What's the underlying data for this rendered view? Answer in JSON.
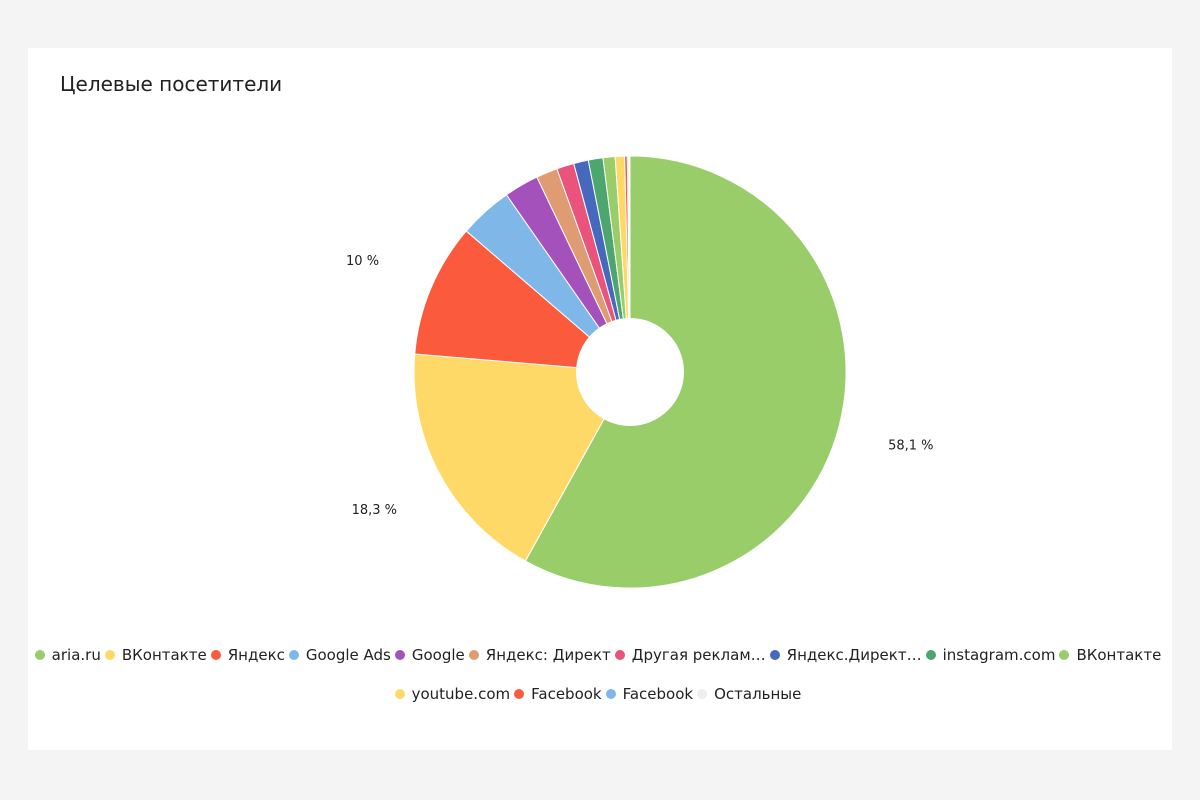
{
  "title": "Целевые посетители",
  "chart_data": {
    "type": "pie",
    "donut": true,
    "legend_position": "bottom",
    "slices": [
      {
        "label": "aria.ru",
        "value": 58.1,
        "color": "#98cd6a",
        "data_label": "58,1 %"
      },
      {
        "label": "ВКонтакте",
        "value": 18.3,
        "color": "#fed968",
        "data_label": "18,3 %"
      },
      {
        "label": "Яндекс",
        "value": 10.0,
        "color": "#fb5a3c",
        "data_label": "10 %"
      },
      {
        "label": "Google Ads",
        "value": 4.0,
        "color": "#7fb8e8",
        "data_label": ""
      },
      {
        "label": "Google",
        "value": 2.6,
        "color": "#a451bc",
        "data_label": ""
      },
      {
        "label": "Яндекс: Директ",
        "value": 1.6,
        "color": "#df9c72",
        "data_label": ""
      },
      {
        "label": "Другая реклам…",
        "value": 1.3,
        "color": "#e9537c",
        "data_label": ""
      },
      {
        "label": "Яндекс.Директ…",
        "value": 1.1,
        "color": "#4769bd",
        "data_label": ""
      },
      {
        "label": "instagram.com",
        "value": 1.1,
        "color": "#4ca66e",
        "data_label": ""
      },
      {
        "label": "ВКонтакте",
        "value": 0.9,
        "color": "#98cd6a",
        "data_label": ""
      },
      {
        "label": "youtube.com",
        "value": 0.7,
        "color": "#fed968",
        "data_label": ""
      },
      {
        "label": "Facebook",
        "value": 0.2,
        "color": "#fb5a3c",
        "data_label": ""
      },
      {
        "label": "Facebook",
        "value": 0.1,
        "color": "#7fb8e8",
        "data_label": ""
      },
      {
        "label": "Остальные",
        "value": 0.1,
        "color": "#eeeeee",
        "data_label": ""
      }
    ]
  }
}
